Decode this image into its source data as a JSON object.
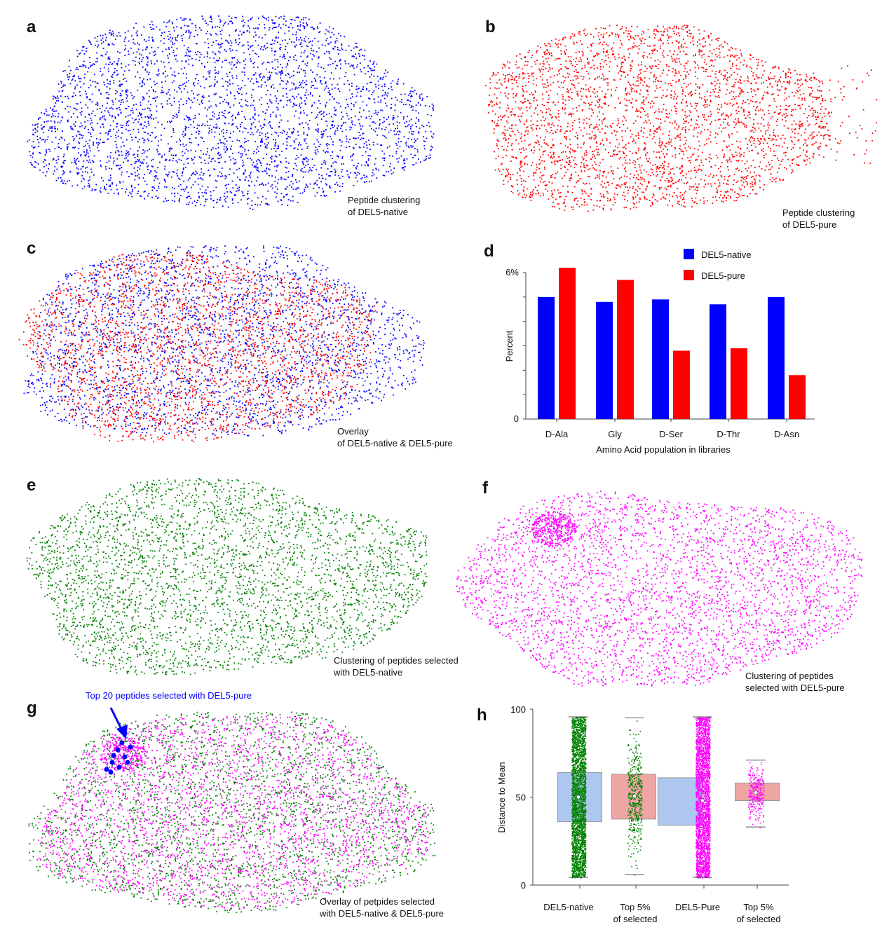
{
  "panel_letters": [
    "a",
    "b",
    "c",
    "d",
    "e",
    "f",
    "g",
    "h"
  ],
  "colors": {
    "native": "#0000ff",
    "pure": "#ff0000",
    "sel_native": "#008000",
    "sel_pure": "#ff00ff",
    "box_native": "#aec7f0",
    "box_top": "#f0a5a5"
  },
  "chart_data": [
    {
      "panel": "a",
      "type": "scatter",
      "series": [
        {
          "color": "#0000ff"
        }
      ],
      "caption": [
        "Peptide clustering",
        "of DEL5-native"
      ]
    },
    {
      "panel": "b",
      "type": "scatter",
      "series": [
        {
          "color": "#ff0000"
        }
      ],
      "caption": [
        "Peptide clustering",
        "of DEL5-pure"
      ]
    },
    {
      "panel": "c",
      "type": "scatter",
      "series": [
        {
          "color": "#0000ff"
        },
        {
          "color": "#ff0000"
        }
      ],
      "caption": [
        "Overlay",
        "of DEL5-native & DEL5-pure"
      ]
    },
    {
      "panel": "d",
      "type": "bar",
      "categories": [
        "D-Ala",
        "Gly",
        "D-Ser",
        "D-Thr",
        "D-Asn"
      ],
      "series": [
        {
          "name": "DEL5-native",
          "color": "#0000ff",
          "values": [
            5.0,
            4.8,
            4.9,
            4.7,
            5.0
          ]
        },
        {
          "name": "DEL5-pure",
          "color": "#ff0000",
          "values": [
            6.2,
            5.7,
            2.8,
            2.9,
            1.8
          ]
        }
      ],
      "xlabel": "Amino Acid population in libraries",
      "ylabel": "Percent",
      "ylim": [
        0,
        6
      ],
      "yticks": [
        {
          "v": 0,
          "label": "0"
        },
        {
          "v": 6,
          "label": "6%"
        }
      ],
      "legend": "top-right"
    },
    {
      "panel": "e",
      "type": "scatter",
      "series": [
        {
          "color": "#008000"
        }
      ],
      "caption": [
        "Clustering of peptides selected",
        "with DEL5-native"
      ]
    },
    {
      "panel": "f",
      "type": "scatter",
      "series": [
        {
          "color": "#ff00ff"
        }
      ],
      "caption": [
        "Clustering of peptides",
        "selected with DEL5-pure"
      ]
    },
    {
      "panel": "g",
      "type": "scatter",
      "series": [
        {
          "color": "#008000"
        },
        {
          "color": "#ff00ff"
        },
        {
          "color": "#0000ff"
        }
      ],
      "caption": [
        "Overlay of petpides selected",
        "with DEL5-native & DEL5-pure"
      ],
      "annotation": "Top 20 peptides selected with DEL5-pure"
    },
    {
      "panel": "h",
      "type": "box",
      "ylabel": "Distance to Mean",
      "ylim": [
        0,
        100
      ],
      "yticks": [
        0,
        50,
        100
      ],
      "categories": [
        [
          "DEL5-native"
        ],
        [
          "Top 5%",
          "of selected"
        ],
        [
          "DEL5-Pure"
        ],
        [
          "Top 5%",
          "of selected"
        ]
      ],
      "boxes": [
        {
          "q1": 36,
          "q3": 64,
          "mean": 50,
          "whisker_low": 4.4,
          "whisker_high": 95.6,
          "box_color": "#aec7f0",
          "dot_color": "#008000"
        },
        {
          "q1": 37.5,
          "q3": 63,
          "mean": 50.6,
          "whisker_low": 6,
          "whisker_high": 95,
          "box_color": "#f0a5a5",
          "dot_color": "#008000"
        },
        {
          "q1": 34,
          "q3": 61,
          "mean": 48,
          "whisker_low": 4.4,
          "whisker_high": 95.6,
          "box_color": "#aec7f0",
          "dot_color": "#ff00ff"
        },
        {
          "q1": 48,
          "q3": 58,
          "mean": 52.6,
          "whisker_low": 33,
          "whisker_high": 71,
          "box_color": "#f0a5a5",
          "dot_color": "#ff00ff"
        }
      ]
    }
  ]
}
